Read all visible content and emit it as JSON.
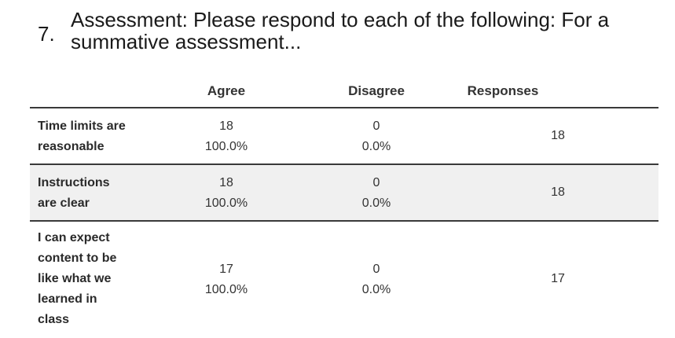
{
  "question": {
    "number": "7.",
    "title": "Assessment: Please respond to each of the following: For a summative assessment..."
  },
  "table": {
    "headers": {
      "agree": "Agree",
      "disagree": "Disagree",
      "responses": "Responses"
    },
    "rows": [
      {
        "label_line1": "Time limits are",
        "label_line2": "reasonable",
        "agree_count": "18",
        "agree_pct": "100.0%",
        "disagree_count": "0",
        "disagree_pct": "0.0%",
        "responses": "18"
      },
      {
        "label_line1": "Instructions",
        "label_line2": "are clear",
        "agree_count": "18",
        "agree_pct": "100.0%",
        "disagree_count": "0",
        "disagree_pct": "0.0%",
        "responses": "18"
      },
      {
        "label_line1": "I can expect",
        "label_line2": "content to be",
        "label_line3": "like what we",
        "label_line4": "learned in",
        "label_line5": "class",
        "agree_count": "17",
        "agree_pct": "100.0%",
        "disagree_count": "0",
        "disagree_pct": "0.0%",
        "responses": "17"
      }
    ]
  }
}
